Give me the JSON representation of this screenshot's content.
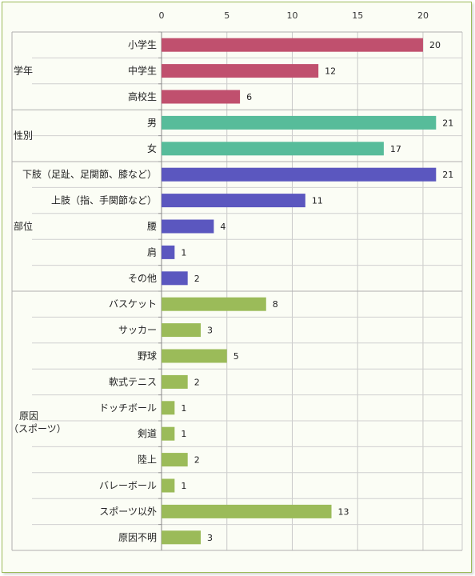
{
  "chart_data": {
    "type": "bar",
    "orientation": "horizontal",
    "xlim": [
      0,
      23
    ],
    "x_ticks": [
      0,
      5,
      10,
      15,
      20
    ],
    "grid": true,
    "colors": {
      "学年": "#c0506e",
      "性別": "#57bc9a",
      "部位": "#5b57bf",
      "原因（スポーツ）": "#9bbb59"
    },
    "groups": [
      {
        "name": "学年",
        "items": [
          {
            "label": "小学生",
            "value": 20
          },
          {
            "label": "中学生",
            "value": 12
          },
          {
            "label": "高校生",
            "value": 6
          }
        ]
      },
      {
        "name": "性別",
        "items": [
          {
            "label": "男",
            "value": 21
          },
          {
            "label": "女",
            "value": 17
          }
        ]
      },
      {
        "name": "部位",
        "items": [
          {
            "label": "下肢（足趾、足関節、膝など）",
            "value": 21
          },
          {
            "label": "上肢（指、手関節など）",
            "value": 11
          },
          {
            "label": "腰",
            "value": 4
          },
          {
            "label": "肩",
            "value": 1
          },
          {
            "label": "その他",
            "value": 2
          }
        ]
      },
      {
        "name": "原因（スポーツ）",
        "items": [
          {
            "label": "バスケット",
            "value": 8
          },
          {
            "label": "サッカー",
            "value": 3
          },
          {
            "label": "野球",
            "value": 5
          },
          {
            "label": "軟式テニス",
            "value": 2
          },
          {
            "label": "ドッチボール",
            "value": 1
          },
          {
            "label": "剣道",
            "value": 1
          },
          {
            "label": "陸上",
            "value": 2
          },
          {
            "label": "バレーボール",
            "value": 1
          },
          {
            "label": "スポーツ以外",
            "value": 13
          },
          {
            "label": "原因不明",
            "value": 3
          }
        ]
      }
    ]
  }
}
